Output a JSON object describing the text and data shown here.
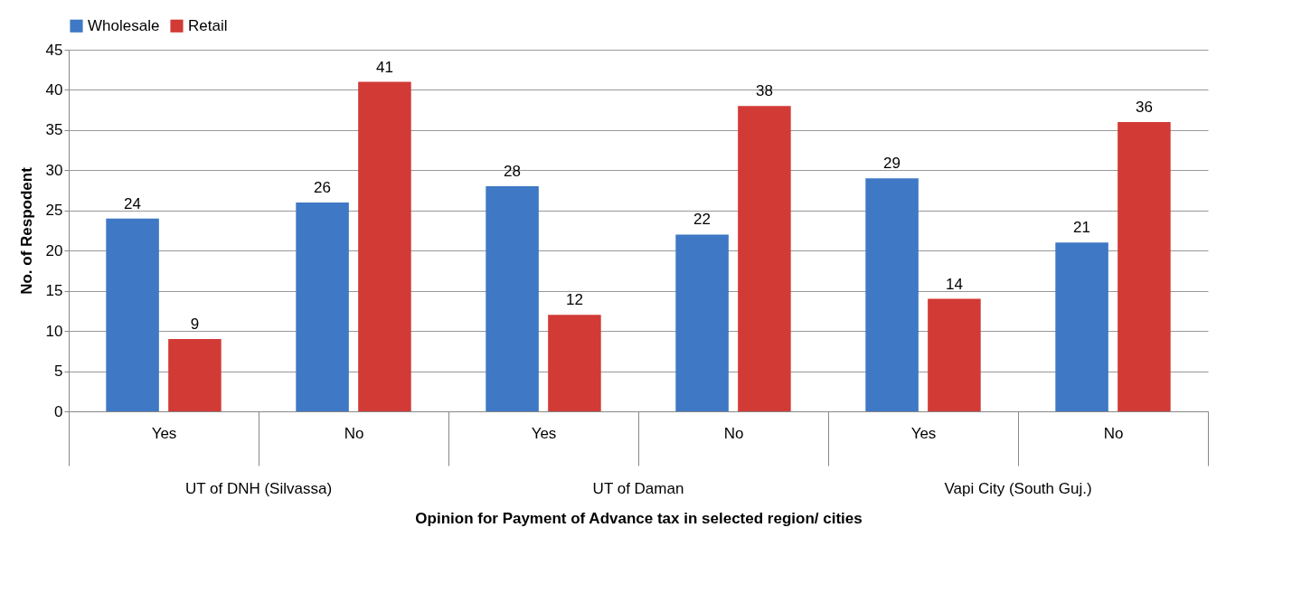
{
  "chart_data": {
    "type": "bar",
    "xlabel": "Opinion for Payment of Advance tax in selected region/ cities",
    "ylabel": "No. of Respodent",
    "categories": [
      "Yes",
      "No",
      "Yes",
      "No",
      "Yes",
      "No"
    ],
    "series": [
      {
        "name": "Wholesale",
        "color": "#3f78c4",
        "values": [
          24,
          26,
          28,
          22,
          29,
          21
        ]
      },
      {
        "name": "Retail",
        "color": "#d23a36",
        "values": [
          9,
          41,
          12,
          38,
          14,
          36
        ]
      }
    ],
    "annotations": [
      "UT of DNH (Silvassa)",
      "UT of Daman",
      "Vapi City (South Guj.)"
    ],
    "ylim": [
      0,
      45
    ],
    "yticks": [
      0,
      5,
      10,
      15,
      20,
      25,
      30,
      35,
      40,
      45
    ],
    "grid": "y",
    "legend": "top",
    "data_labels": true
  }
}
